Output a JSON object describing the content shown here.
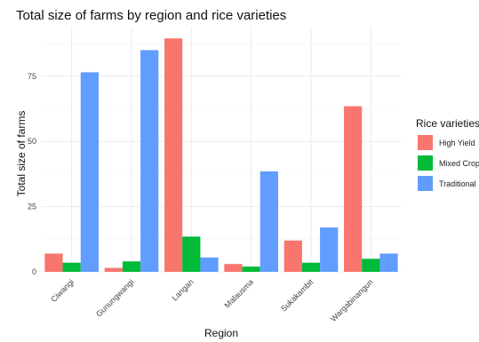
{
  "chart_data": {
    "type": "bar",
    "title": "Total size of farms by region and rice varieties",
    "xlabel": "Region",
    "ylabel": "Total size of farms",
    "categories": [
      "Ciwangi",
      "Gunungwangi",
      "Langan",
      "Malausma",
      "Sukakambit",
      "Wargabinangun"
    ],
    "series": [
      {
        "name": "High Yield",
        "color": "#F8766D",
        "values": [
          7,
          1.5,
          89.5,
          3,
          12,
          63.5
        ]
      },
      {
        "name": "Mixed Crop",
        "color": "#00BA38",
        "values": [
          3.5,
          4,
          13.5,
          2,
          3.5,
          5
        ]
      },
      {
        "name": "Traditional",
        "color": "#619CFF",
        "values": [
          76.5,
          85,
          5.5,
          38.5,
          17,
          7
        ]
      }
    ],
    "yticks": [
      0,
      25,
      50,
      75
    ],
    "ylim": [
      0,
      94
    ],
    "legend": {
      "title": "Rice varieties",
      "position": "right"
    },
    "grid": true
  }
}
